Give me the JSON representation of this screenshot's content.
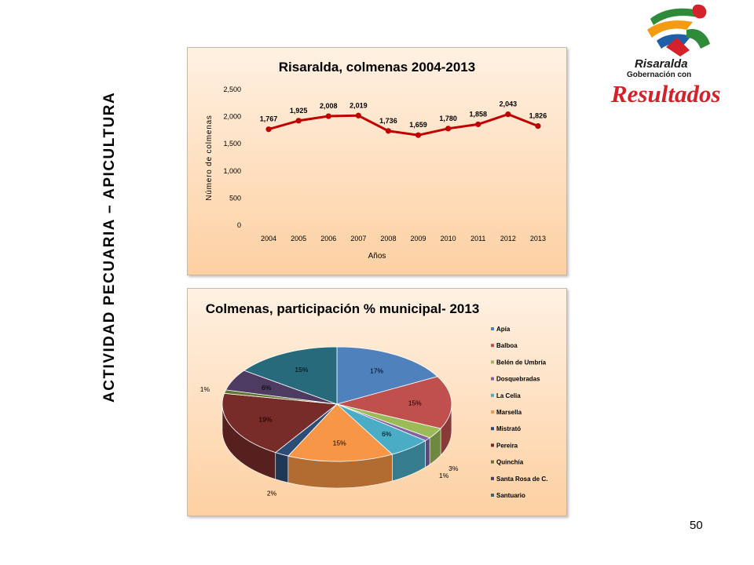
{
  "side_title": "ACTIVIDAD PECUARIA – APICULTURA",
  "page_number": "50",
  "logo": {
    "line1": "Risaralda",
    "line2": "Gobernación con",
    "line3": "Resultados",
    "colors": [
      "#2e8b3a",
      "#d3222a",
      "#f39c12",
      "#1f5fa8"
    ]
  },
  "chart_data": [
    {
      "type": "line",
      "title": "Risaralda, colmenas 2004-2013",
      "xlabel": "Años",
      "ylabel": "Número de colmenas",
      "x": [
        "2004",
        "2005",
        "2006",
        "2007",
        "2008",
        "2009",
        "2010",
        "2011",
        "2012",
        "2013"
      ],
      "values": [
        1767,
        1925,
        2008,
        2019,
        1736,
        1659,
        1780,
        1858,
        2043,
        1826
      ],
      "value_labels": [
        "1,767",
        "1,925",
        "2,008",
        "2,019",
        "1,736",
        "1,659",
        "1,780",
        "1,858",
        "2,043",
        "1,826"
      ],
      "ylim": [
        0,
        2500
      ],
      "yticks": [
        "0",
        "500",
        "1,000",
        "1,500",
        "2,000",
        "2,500"
      ],
      "grid": false,
      "color": "#c00000"
    },
    {
      "type": "pie",
      "title": "Colmenas, participación % municipal- 2013",
      "legend_position": "right",
      "slices": [
        {
          "name": "Apía",
          "value": 17,
          "label": "17%",
          "color": "#4f81bd"
        },
        {
          "name": "Balboa",
          "value": 15,
          "label": "15%",
          "color": "#c0504d"
        },
        {
          "name": "Belén de Umbría",
          "value": 3,
          "label": "3%",
          "color": "#9bbb59"
        },
        {
          "name": "Dosquebradas",
          "value": 1,
          "label": "1%",
          "color": "#8064a2"
        },
        {
          "name": "La Celia",
          "value": 6,
          "label": "6%",
          "color": "#4bacc6"
        },
        {
          "name": "Marsella",
          "value": 15,
          "label": "15%",
          "color": "#f79646"
        },
        {
          "name": "Mistrató",
          "value": 2,
          "label": "2%",
          "color": "#2c4d75"
        },
        {
          "name": "Pereira",
          "value": 19,
          "label": "19%",
          "color": "#772c2a"
        },
        {
          "name": "Quinchía",
          "value": 1,
          "label": "1%",
          "color": "#5f7530"
        },
        {
          "name": "Santa Rosa de C.",
          "value": 6,
          "label": "6%",
          "color": "#4d3b62"
        },
        {
          "name": "Santuario",
          "value": 15,
          "label": "15%",
          "color": "#276a7c"
        }
      ]
    }
  ]
}
